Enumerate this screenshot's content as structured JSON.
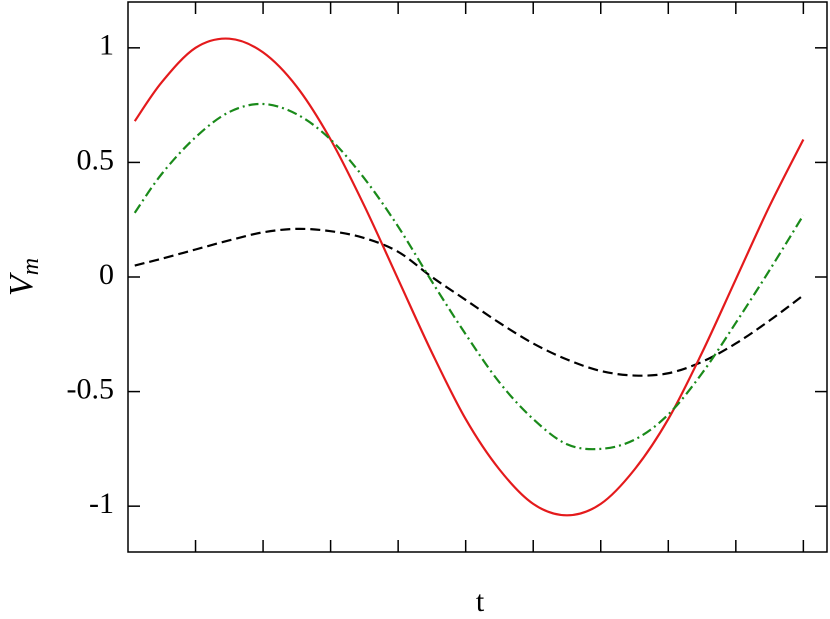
{
  "chart_data": {
    "type": "line",
    "xlabel": "t",
    "ylabel": "V",
    "ylabel_sub": "m",
    "x": [
      0.1,
      0.5,
      1.0,
      1.5,
      2.0,
      2.5,
      3.0,
      3.5,
      4.0,
      4.5,
      5.0,
      5.5,
      6.0,
      6.5,
      7.0,
      7.5,
      8.0,
      8.5,
      9.0,
      9.5,
      10.0
    ],
    "series": [
      {
        "color": "#000000",
        "dash": "dashed",
        "values": [
          0.05,
          0.08,
          0.12,
          0.16,
          0.195,
          0.21,
          0.2,
          0.17,
          0.11,
          0.0,
          -0.1,
          -0.2,
          -0.29,
          -0.36,
          -0.41,
          -0.43,
          -0.42,
          -0.37,
          -0.29,
          -0.19,
          -0.08
        ]
      },
      {
        "color": "#e41a1c",
        "dash": "solid",
        "values": [
          0.68,
          0.85,
          1.0,
          1.04,
          0.98,
          0.83,
          0.6,
          0.31,
          -0.01,
          -0.33,
          -0.62,
          -0.84,
          -0.99,
          -1.04,
          -0.99,
          -0.84,
          -0.62,
          -0.33,
          -0.01,
          0.31,
          0.6
        ]
      },
      {
        "color": "#1a8a1a",
        "dash": "dashdot",
        "values": [
          0.28,
          0.45,
          0.61,
          0.72,
          0.755,
          0.71,
          0.6,
          0.43,
          0.22,
          -0.02,
          -0.25,
          -0.46,
          -0.62,
          -0.73,
          -0.75,
          -0.71,
          -0.6,
          -0.42,
          -0.2,
          0.03,
          0.27
        ]
      }
    ],
    "xlim": [
      0,
      10.35
    ],
    "xticks": [
      1,
      2,
      3,
      4,
      5,
      6,
      7,
      8,
      9,
      10
    ],
    "ylim": [
      -1.2,
      1.2
    ],
    "yticks": [
      -1,
      -0.5,
      0,
      0.5,
      1
    ],
    "mirror_ticks": true
  }
}
